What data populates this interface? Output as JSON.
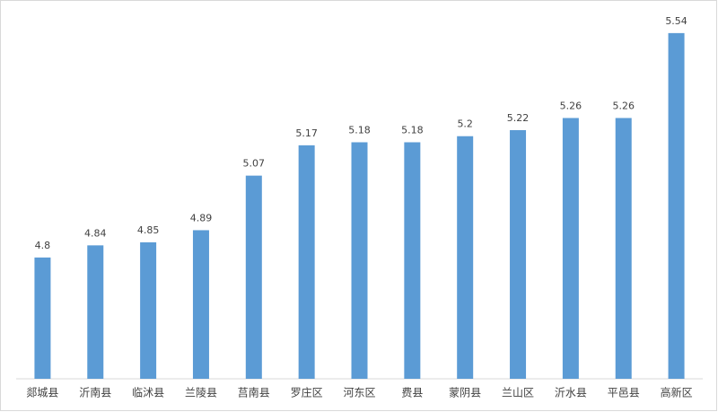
{
  "chart_data": {
    "type": "bar",
    "categories": [
      "郯城县",
      "沂南县",
      "临沭县",
      "兰陵县",
      "莒南县",
      "罗庄区",
      "河东区",
      "费县",
      "蒙阴县",
      "兰山区",
      "沂水县",
      "平邑县",
      "高新区"
    ],
    "values": [
      4.8,
      4.84,
      4.85,
      4.89,
      5.07,
      5.17,
      5.18,
      5.18,
      5.2,
      5.22,
      5.26,
      5.26,
      5.54
    ],
    "color": "#5b9bd5",
    "ylim": [
      4.4,
      5.6
    ]
  }
}
